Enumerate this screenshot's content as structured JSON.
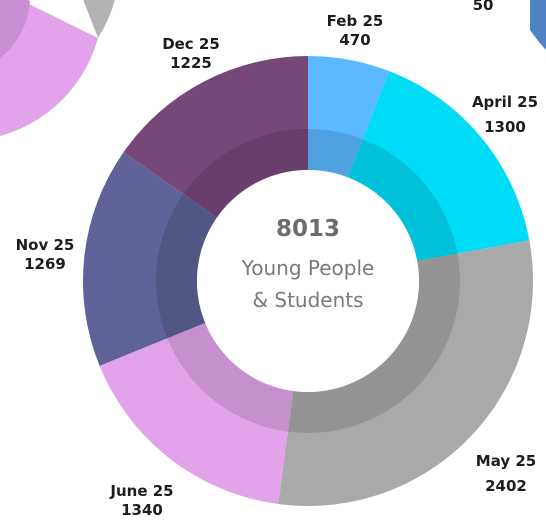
{
  "chart_data": {
    "type": "pie",
    "center": {
      "total": "8013",
      "line1": "Young People",
      "line2": "& Students"
    },
    "segments": [
      {
        "label": "Feb 25",
        "value": 470,
        "value_text": "470",
        "color": "#5cb8ff"
      },
      {
        "label": "April 25",
        "value": 1300,
        "value_text": "1300",
        "color": "#00dcf5"
      },
      {
        "label": "May 25",
        "value": 2402,
        "value_text": "2402",
        "color": "#a9a9a9"
      },
      {
        "label": "June 25",
        "value": 1340,
        "value_text": "1340",
        "color": "#e2a3ea"
      },
      {
        "label": "Nov 25",
        "value": 1269,
        "value_text": "1269",
        "color": "#5e6298"
      },
      {
        "label": "Dec 25",
        "value": 1225,
        "value_text": "1225",
        "color": "#774779"
      }
    ],
    "partial_top_right_value": "50"
  }
}
